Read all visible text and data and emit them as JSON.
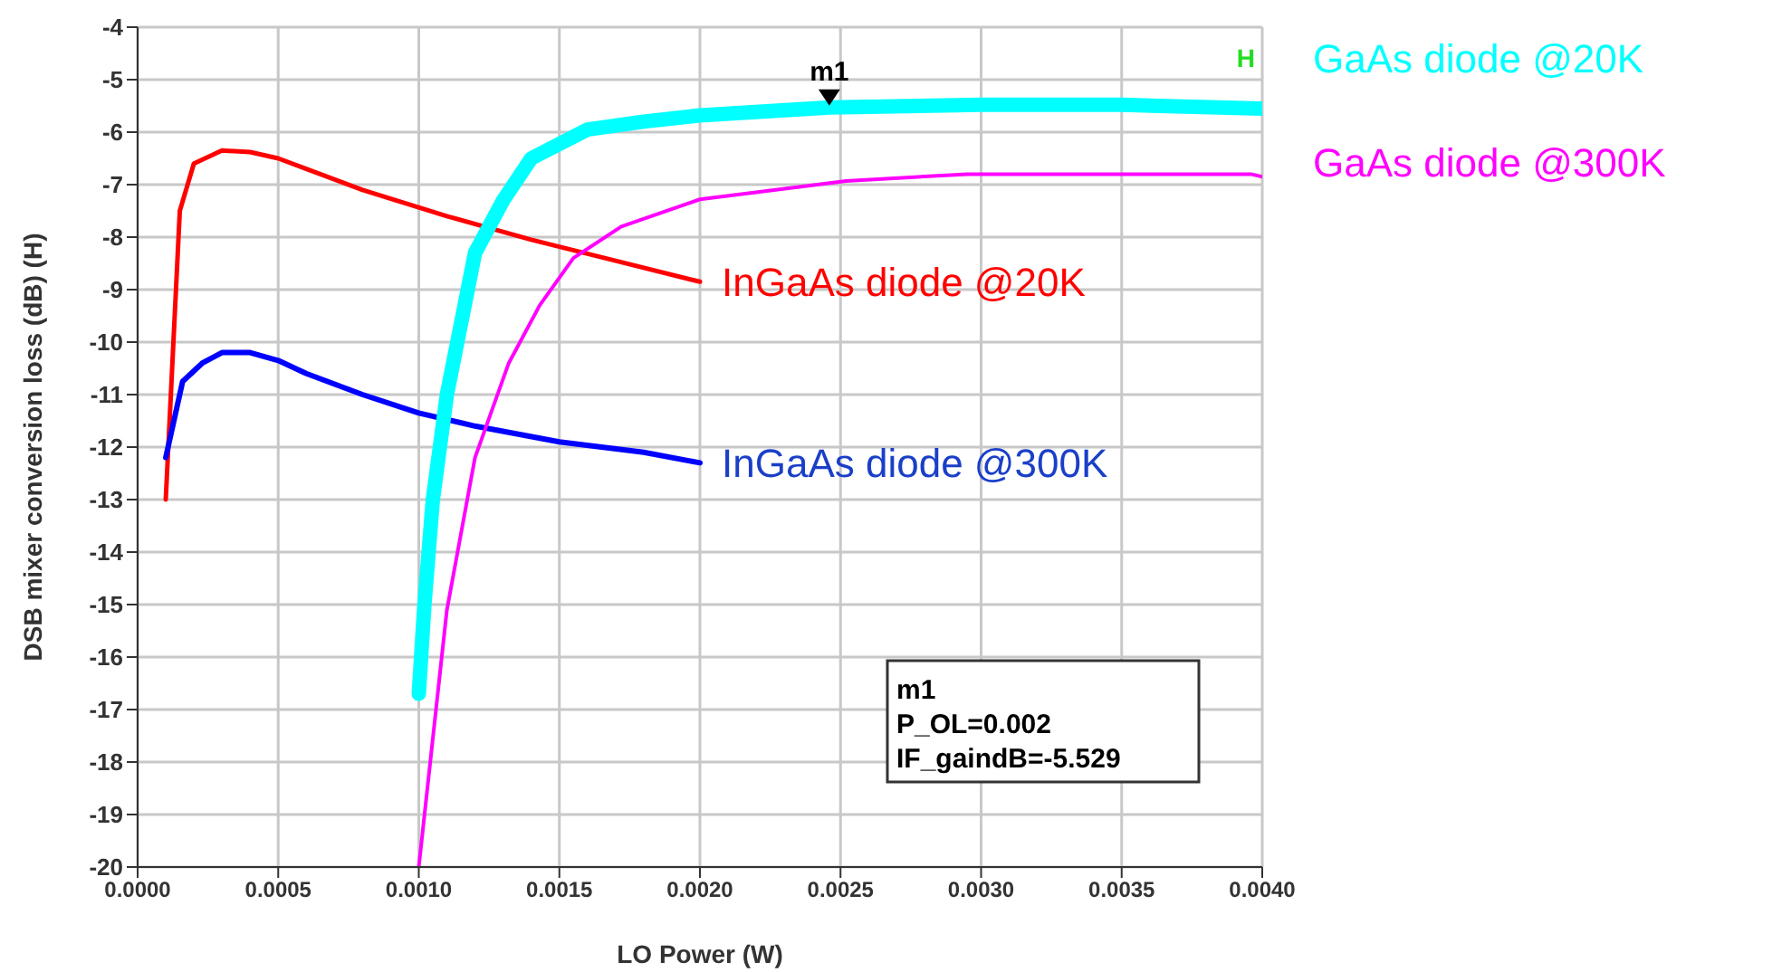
{
  "chart_data": {
    "type": "line",
    "xlabel": "LO Power (W)",
    "ylabel": "DSB mixer conversion loss (dB)  (H)",
    "xlim": [
      0,
      0.004
    ],
    "xticks": [
      {
        "value": 0,
        "label": "0.0000"
      },
      {
        "value": 0.0005,
        "label": "0.0005"
      },
      {
        "value": 0.001,
        "label": "0.0010"
      },
      {
        "value": 0.0015,
        "label": "0.0015"
      },
      {
        "value": 0.002,
        "label": "0.0020"
      },
      {
        "value": 0.0025,
        "label": "0.0025"
      },
      {
        "value": 0.003,
        "label": "0.0030"
      },
      {
        "value": 0.0035,
        "label": "0.0035"
      },
      {
        "value": 0.004,
        "label": "0.0040"
      }
    ],
    "ylim": [
      -20,
      -4
    ],
    "yticks": [
      -20,
      -19,
      -18,
      -17,
      -16,
      -15,
      -14,
      -13,
      -12,
      -11,
      -10,
      -9,
      -8,
      -7,
      -6,
      -5,
      -4
    ],
    "grid": true,
    "legend": false,
    "marker": "none",
    "line_style": "solid",
    "series": [
      {
        "name": "InGaAs diode @20K",
        "color": "#ff0000",
        "x": [
          0.0001,
          0.00015,
          0.0002,
          0.0003,
          0.0004,
          0.0005,
          0.0006,
          0.0008,
          0.0011,
          0.0014,
          0.0017,
          0.002
        ],
        "values": [
          -13,
          -7.5,
          -6.6,
          -6.35,
          -6.38,
          -6.5,
          -6.7,
          -7.1,
          -7.6,
          -8.05,
          -8.45,
          -8.85
        ]
      },
      {
        "name": "InGaAs diode @300K",
        "color": "#0000ff",
        "x": [
          0.0001,
          0.00016,
          0.00023,
          0.0003,
          0.0004,
          0.0005,
          0.0006,
          0.0008,
          0.001,
          0.0012,
          0.0015,
          0.0018,
          0.002
        ],
        "values": [
          -12.2,
          -10.75,
          -10.4,
          -10.2,
          -10.2,
          -10.35,
          -10.6,
          -11,
          -11.35,
          -11.6,
          -11.9,
          -12.1,
          -12.3
        ]
      },
      {
        "name": "GaAs diode @20K",
        "color": "#00ffff",
        "x": [
          0.001,
          0.00102,
          0.00105,
          0.0011,
          0.0012,
          0.0013,
          0.0014,
          0.0016,
          0.0018,
          0.002,
          0.00246,
          0.003,
          0.0035,
          0.004
        ],
        "values": [
          -16.7,
          -15,
          -13,
          -11,
          -8.3,
          -7.3,
          -6.5,
          -5.95,
          -5.8,
          -5.68,
          -5.53,
          -5.48,
          -5.48,
          -5.55
        ]
      },
      {
        "name": "GaAs diode @300K",
        "color": "#ff00ff",
        "x": [
          0.001,
          0.0011,
          0.0012,
          0.00132,
          0.00143,
          0.00155,
          0.00172,
          0.002,
          0.00252,
          0.00295,
          0.00396,
          0.004
        ],
        "values": [
          -20,
          -15.1,
          -12.2,
          -10.4,
          -9.3,
          -8.4,
          -7.8,
          -7.28,
          -6.93,
          -6.8,
          -6.8,
          -6.85
        ]
      }
    ],
    "annotations": [
      {
        "text": "m1",
        "x": 0.00246,
        "y": -5.529
      },
      "m1\nP_OL=0.002\nIF_gaindB=-5.529",
      "H"
    ]
  }
}
